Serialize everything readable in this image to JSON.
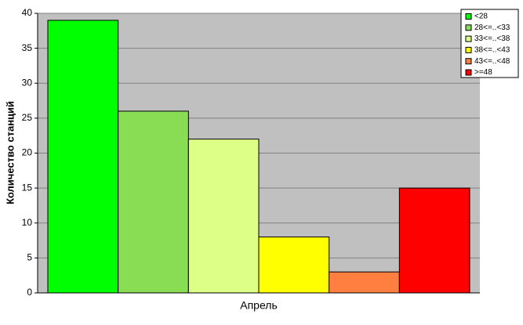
{
  "chart_data": {
    "type": "bar",
    "y_label": "Количество станций",
    "categories": [
      "Апрель"
    ],
    "series": [
      {
        "name": "<28",
        "color": "#00ff00",
        "values": [
          39
        ]
      },
      {
        "name": "28<=..<33",
        "color": "#88dd55",
        "values": [
          26
        ]
      },
      {
        "name": "33<=..<38",
        "color": "#ddff88",
        "values": [
          22
        ]
      },
      {
        "name": "38<=..<43",
        "color": "#ffff00",
        "values": [
          8
        ]
      },
      {
        "name": "43<=..<48",
        "color": "#ff7f40",
        "values": [
          3
        ]
      },
      {
        "name": ">=48",
        "color": "#ff0000",
        "values": [
          15
        ]
      }
    ],
    "ylim": [
      0,
      40
    ],
    "yticks": [
      0,
      5,
      10,
      15,
      20,
      25,
      30,
      35,
      40
    ],
    "grid": true,
    "legend": "top-right"
  }
}
